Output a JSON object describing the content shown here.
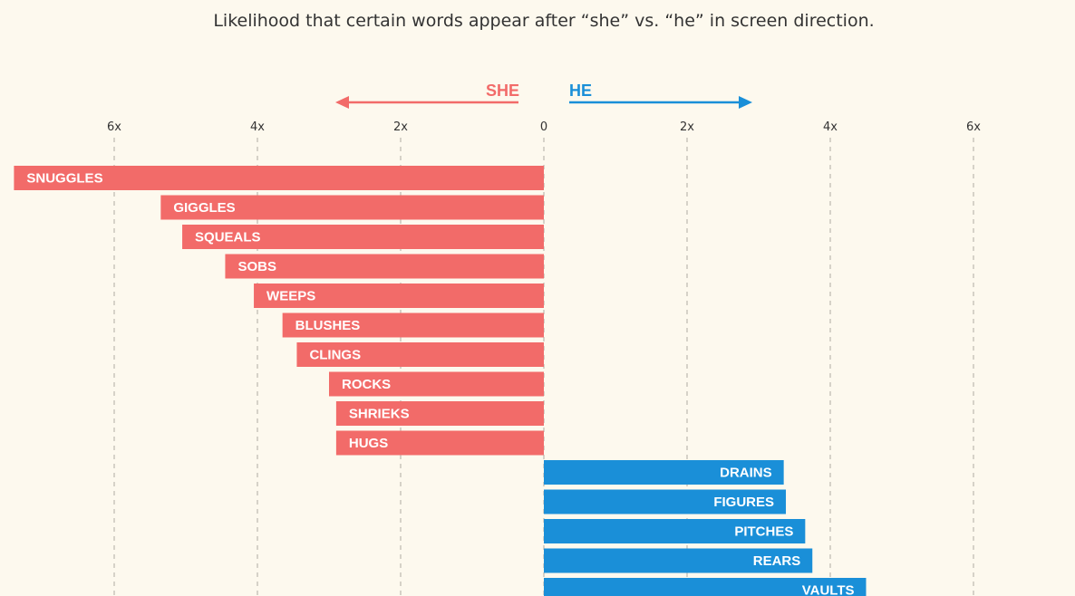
{
  "chart_data": {
    "type": "bar",
    "orientation": "horizontal-diverging",
    "title": "Likelihood that certain words appear after “she” vs. “he” in screen direction.",
    "direction_labels": {
      "left": "SHE",
      "right": "HE"
    },
    "colors": {
      "she": "#f26b69",
      "he": "#1a8fd8",
      "background": "#fdf9ee",
      "grid": "#b0aca3"
    },
    "x_ticks": [
      {
        "value": -6,
        "label": "6x"
      },
      {
        "value": -4,
        "label": "4x"
      },
      {
        "value": -2,
        "label": "2x"
      },
      {
        "value": 0,
        "label": "0"
      },
      {
        "value": 2,
        "label": "2x"
      },
      {
        "value": 4,
        "label": "4x"
      },
      {
        "value": 6,
        "label": "6x"
      }
    ],
    "xlim": [
      -7.5,
      7.5
    ],
    "grid": true,
    "series": [
      {
        "group": "she",
        "bars": [
          {
            "label": "SNUGGLES",
            "value": 7.4
          },
          {
            "label": "GIGGLES",
            "value": 5.35
          },
          {
            "label": "SQUEALS",
            "value": 5.05
          },
          {
            "label": "SOBS",
            "value": 4.45
          },
          {
            "label": "WEEPS",
            "value": 4.05
          },
          {
            "label": "BLUSHES",
            "value": 3.65
          },
          {
            "label": "CLINGS",
            "value": 3.45
          },
          {
            "label": "ROCKS",
            "value": 3.0
          },
          {
            "label": "SHRIEKS",
            "value": 2.9
          },
          {
            "label": "HUGS",
            "value": 2.9
          }
        ]
      },
      {
        "group": "he",
        "bars": [
          {
            "label": "DRAINS",
            "value": 3.35
          },
          {
            "label": "FIGURES",
            "value": 3.38
          },
          {
            "label": "PITCHES",
            "value": 3.65
          },
          {
            "label": "REARS",
            "value": 3.75
          },
          {
            "label": "VAULTS",
            "value": 4.5
          }
        ]
      }
    ]
  }
}
